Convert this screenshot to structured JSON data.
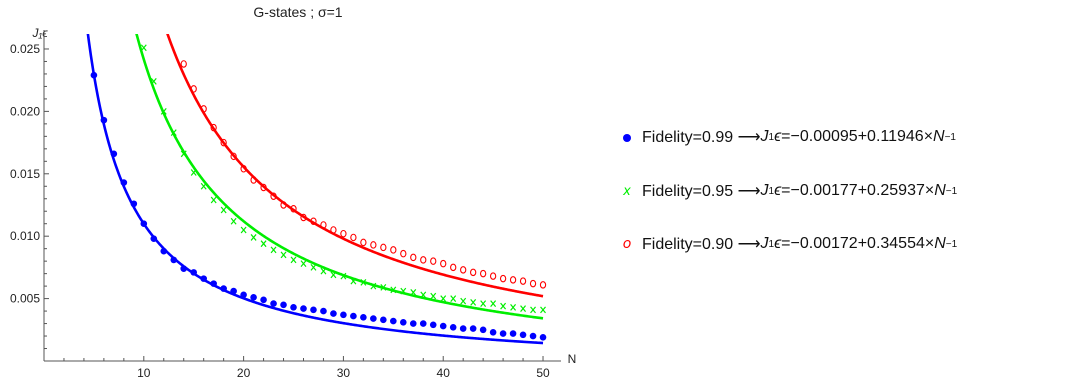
{
  "chart_data": {
    "type": "scatter",
    "title": "G-states ; σ=1",
    "xlabel": "N",
    "ylabel": "J₁ϵ",
    "xlim": [
      0,
      51
    ],
    "ylim": [
      0,
      0.0262
    ],
    "xticks": [
      10,
      20,
      30,
      40,
      50
    ],
    "xtick_labels": [
      "10",
      "20",
      "30",
      "40",
      "50"
    ],
    "yticks": [
      0.005,
      0.01,
      0.015,
      0.02,
      0.025
    ],
    "ytick_labels": [
      "0.005",
      "0.010",
      "0.015",
      "0.020",
      "0.025"
    ],
    "legend_position": "right",
    "grid": false,
    "series": [
      {
        "name": "Fidelity=0.99 ⟶ J₁ϵ=−0.00095+0.11946×N⁻¹",
        "label_lhs": "Fidelity=0.99 ⟶ ",
        "label_fit": "=−0.00095+0.11946×",
        "marker": "dot",
        "color": "#0000ff",
        "fit": {
          "a": -0.00095,
          "b": 0.11946
        },
        "x": [
          5,
          6,
          7,
          8,
          9,
          10,
          11,
          12,
          13,
          14,
          15,
          16,
          17,
          18,
          19,
          20,
          21,
          22,
          23,
          24,
          25,
          26,
          27,
          28,
          29,
          30,
          31,
          32,
          33,
          34,
          35,
          36,
          37,
          38,
          39,
          40,
          41,
          42,
          43,
          44,
          45,
          46,
          47,
          48,
          49,
          50
        ],
        "y": [
          0.0229,
          0.0193,
          0.0166,
          0.0143,
          0.0126,
          0.011,
          0.0098,
          0.0088,
          0.0081,
          0.0074,
          0.0071,
          0.0066,
          0.0062,
          0.0058,
          0.0056,
          0.0053,
          0.0051,
          0.0049,
          0.0046,
          0.0045,
          0.0043,
          0.0042,
          0.0041,
          0.004,
          0.0038,
          0.0037,
          0.0036,
          0.0035,
          0.0034,
          0.0033,
          0.0032,
          0.0031,
          0.003,
          0.003,
          0.0029,
          0.0028,
          0.0027,
          0.0026,
          0.0026,
          0.0025,
          0.0023,
          0.0022,
          0.0022,
          0.0021,
          0.002,
          0.0019
        ]
      },
      {
        "name": "Fidelity=0.95 ⟶ J₁ϵ=−0.00177+0.25937×N⁻¹",
        "label_lhs": "Fidelity=0.95 ⟶ ",
        "label_fit": "=−0.00177+0.25937×",
        "marker": "x",
        "color": "#00ee00",
        "fit": {
          "a": -0.00177,
          "b": 0.25937
        },
        "x": [
          10,
          11,
          12,
          13,
          14,
          15,
          16,
          17,
          18,
          19,
          20,
          21,
          22,
          23,
          24,
          25,
          26,
          27,
          28,
          29,
          30,
          31,
          32,
          33,
          34,
          35,
          36,
          37,
          38,
          39,
          40,
          41,
          42,
          43,
          44,
          45,
          46,
          47,
          48,
          49,
          50
        ],
        "y": [
          0.0251,
          0.0224,
          0.02,
          0.0183,
          0.0166,
          0.0151,
          0.014,
          0.0129,
          0.0121,
          0.0112,
          0.0105,
          0.0099,
          0.0094,
          0.0089,
          0.0085,
          0.0081,
          0.0078,
          0.0075,
          0.0072,
          0.0069,
          0.0068,
          0.0064,
          0.0063,
          0.006,
          0.0059,
          0.0057,
          0.0056,
          0.0055,
          0.0053,
          0.0052,
          0.005,
          0.005,
          0.0048,
          0.0047,
          0.0046,
          0.0046,
          0.0044,
          0.0043,
          0.0042,
          0.0041,
          0.0041
        ]
      },
      {
        "name": "Fidelity=0.90 ⟶ J₁ϵ=−0.00172+0.34554×N⁻¹",
        "label_lhs": "Fidelity=0.90 ⟶ ",
        "label_fit": "=−0.00172+0.34554×",
        "marker": "o",
        "color": "#ff0000",
        "fit": {
          "a": -0.00172,
          "b": 0.34554
        },
        "x": [
          14,
          15,
          16,
          17,
          18,
          19,
          20,
          21,
          22,
          23,
          24,
          25,
          26,
          27,
          28,
          29,
          30,
          31,
          32,
          33,
          34,
          35,
          36,
          37,
          38,
          39,
          40,
          41,
          42,
          43,
          44,
          45,
          46,
          47,
          48,
          49,
          50
        ],
        "y": [
          0.0238,
          0.0218,
          0.0202,
          0.0187,
          0.0175,
          0.0164,
          0.0154,
          0.0145,
          0.0139,
          0.0132,
          0.0125,
          0.0122,
          0.0115,
          0.0112,
          0.0109,
          0.0105,
          0.0102,
          0.0099,
          0.0095,
          0.0093,
          0.0091,
          0.0089,
          0.0086,
          0.0083,
          0.0081,
          0.008,
          0.0078,
          0.0075,
          0.0073,
          0.0071,
          0.007,
          0.0068,
          0.0066,
          0.0065,
          0.0064,
          0.0062,
          0.0061
        ]
      }
    ]
  },
  "legend": {
    "fit_symbol": "ϵ",
    "fit_var_sub": "1",
    "fit_var_main": "J",
    "inverse_base": "N",
    "inverse_exp": "−1"
  }
}
